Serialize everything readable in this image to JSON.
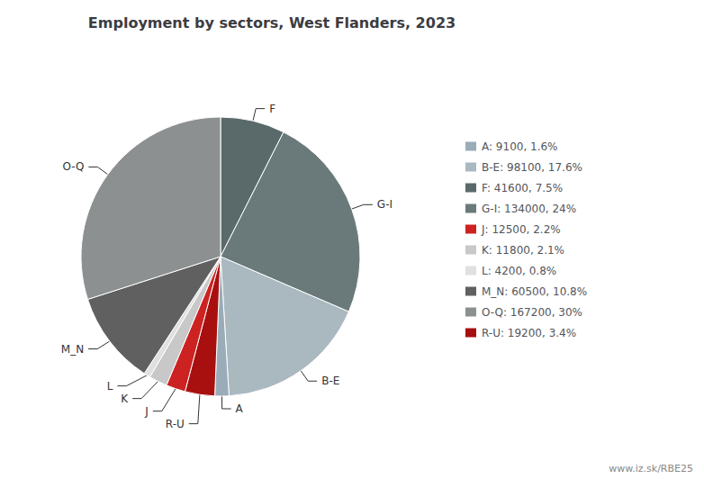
{
  "chart_data": {
    "type": "pie",
    "title": "Employment by sectors, West Flanders, 2023",
    "categories": [
      "F",
      "G-I",
      "B-E",
      "A",
      "R-U",
      "J",
      "K",
      "L",
      "M_N",
      "O-Q"
    ],
    "values": [
      41600,
      134000,
      98100,
      9100,
      19200,
      12500,
      11800,
      4200,
      60500,
      167200
    ],
    "colors": [
      "#5a6a6a",
      "#6a7a7a",
      "#aab8c0",
      "#9aacb8",
      "#a81010",
      "#cc2222",
      "#c8c8c8",
      "#e0e0e0",
      "#606060",
      "#8c9090"
    ],
    "legend": "right",
    "legend_order": [
      "A",
      "B-E",
      "F",
      "G-I",
      "J",
      "K",
      "L",
      "M_N",
      "O-Q",
      "R-U"
    ],
    "legend_labels": [
      "A: 9100, 1.6%",
      "B-E: 98100, 17.6%",
      "F: 41600, 7.5%",
      "G-I: 134000, 24%",
      "J: 12500, 2.2%",
      "K: 11800, 2.1%",
      "L: 4200, 0.8%",
      "M_N: 60500, 10.8%",
      "O-Q: 167200, 30%",
      "R-U: 19200, 3.4%"
    ],
    "annotations": [
      "www.iz.sk/RBE25"
    ]
  }
}
